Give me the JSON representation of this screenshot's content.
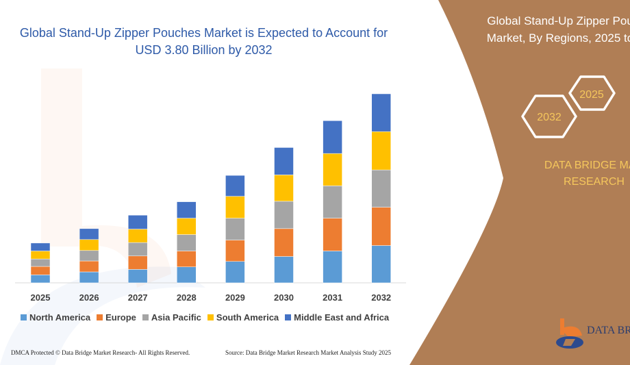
{
  "title": "Global Stand-Up Zipper Pouches Market is Expected to Account for USD 3.80 Billion by 2032",
  "panel": {
    "title_line1": "Global Stand-Up Zipper Pou",
    "title_line2": "Market, By Regions, 2025 to",
    "hex_start": "2025",
    "hex_end": "2032",
    "brand_line1": "DATA BRIDGE MAR",
    "brand_line2": "RESEARCH",
    "logo_text": "DATA BRI",
    "bg_color": "#b07e55"
  },
  "footer": {
    "left": "DMCA Protected © Data Bridge Market Research-  All Rights Reserved.",
    "right": "Source: Data Bridge Market Research  Market Analysis Study 2025"
  },
  "chart_data": {
    "type": "bar",
    "stacked": true,
    "title": "Global Stand-Up Zipper Pouches Market is Expected to Account for USD 3.80 Billion by 2032",
    "xlabel": "",
    "ylabel": "",
    "y_axis_shown": false,
    "grid": false,
    "legend_position": "bottom",
    "categories": [
      "2025",
      "2026",
      "2027",
      "2028",
      "2029",
      "2030",
      "2031",
      "2032"
    ],
    "series": [
      {
        "name": "North America",
        "color": "#5b9bd5",
        "values": [
          0.16,
          0.22,
          0.27,
          0.32,
          0.43,
          0.53,
          0.64,
          0.75
        ]
      },
      {
        "name": "Europe",
        "color": "#ed7d31",
        "values": [
          0.17,
          0.22,
          0.27,
          0.32,
          0.43,
          0.56,
          0.66,
          0.77
        ]
      },
      {
        "name": "Asia Pacific",
        "color": "#a5a5a5",
        "values": [
          0.15,
          0.21,
          0.27,
          0.33,
          0.44,
          0.55,
          0.65,
          0.75
        ]
      },
      {
        "name": "South America",
        "color": "#ffc000",
        "values": [
          0.16,
          0.22,
          0.27,
          0.33,
          0.44,
          0.53,
          0.65,
          0.77
        ]
      },
      {
        "name": "Middle East and Africa",
        "color": "#4472c4",
        "values": [
          0.16,
          0.22,
          0.28,
          0.33,
          0.42,
          0.55,
          0.66,
          0.76
        ]
      }
    ],
    "ylim": [
      0,
      3.8
    ]
  }
}
